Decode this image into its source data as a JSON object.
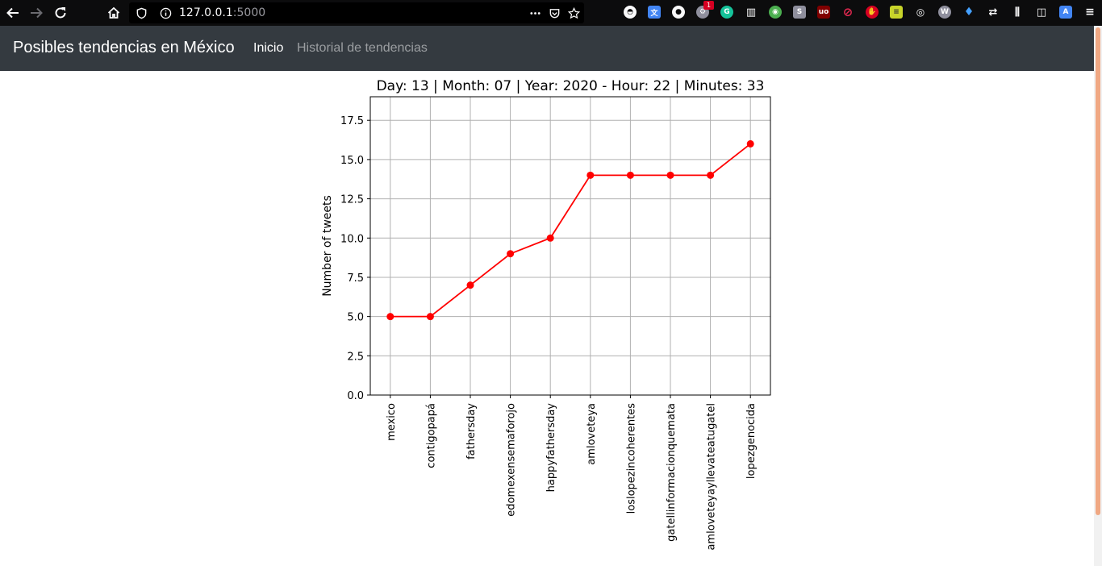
{
  "browser": {
    "url_host": "127.0.0.1",
    "url_port": ":5000",
    "extension_badge": "1"
  },
  "navbar": {
    "brand": "Posibles tendencias en México",
    "links": [
      {
        "label": "Inicio",
        "active": true
      },
      {
        "label": "Historial de tendencias",
        "active": false
      }
    ]
  },
  "chart_data": {
    "type": "line",
    "title": "Day: 13 | Month: 07 | Year: 2020 - Hour: 22 | Minutes: 33",
    "xlabel": "",
    "ylabel": "Number of tweets",
    "categories": [
      "mexico",
      "contigopapá",
      "fathersday",
      "edomexensemaforojo",
      "happyfathersday",
      "amloveteya",
      "loslopezincoherentes",
      "gatellinformacionquemata",
      "amloveteyayllevateatugatel",
      "lopezgenocida"
    ],
    "values": [
      5,
      5,
      7,
      9,
      10,
      14,
      14,
      14,
      14,
      16
    ],
    "yticks": [
      "0.0",
      "2.5",
      "5.0",
      "7.5",
      "10.0",
      "12.5",
      "15.0",
      "17.5"
    ],
    "ylim": [
      0,
      19
    ],
    "grid": true,
    "color": "#ff0000",
    "marker": "circle"
  }
}
